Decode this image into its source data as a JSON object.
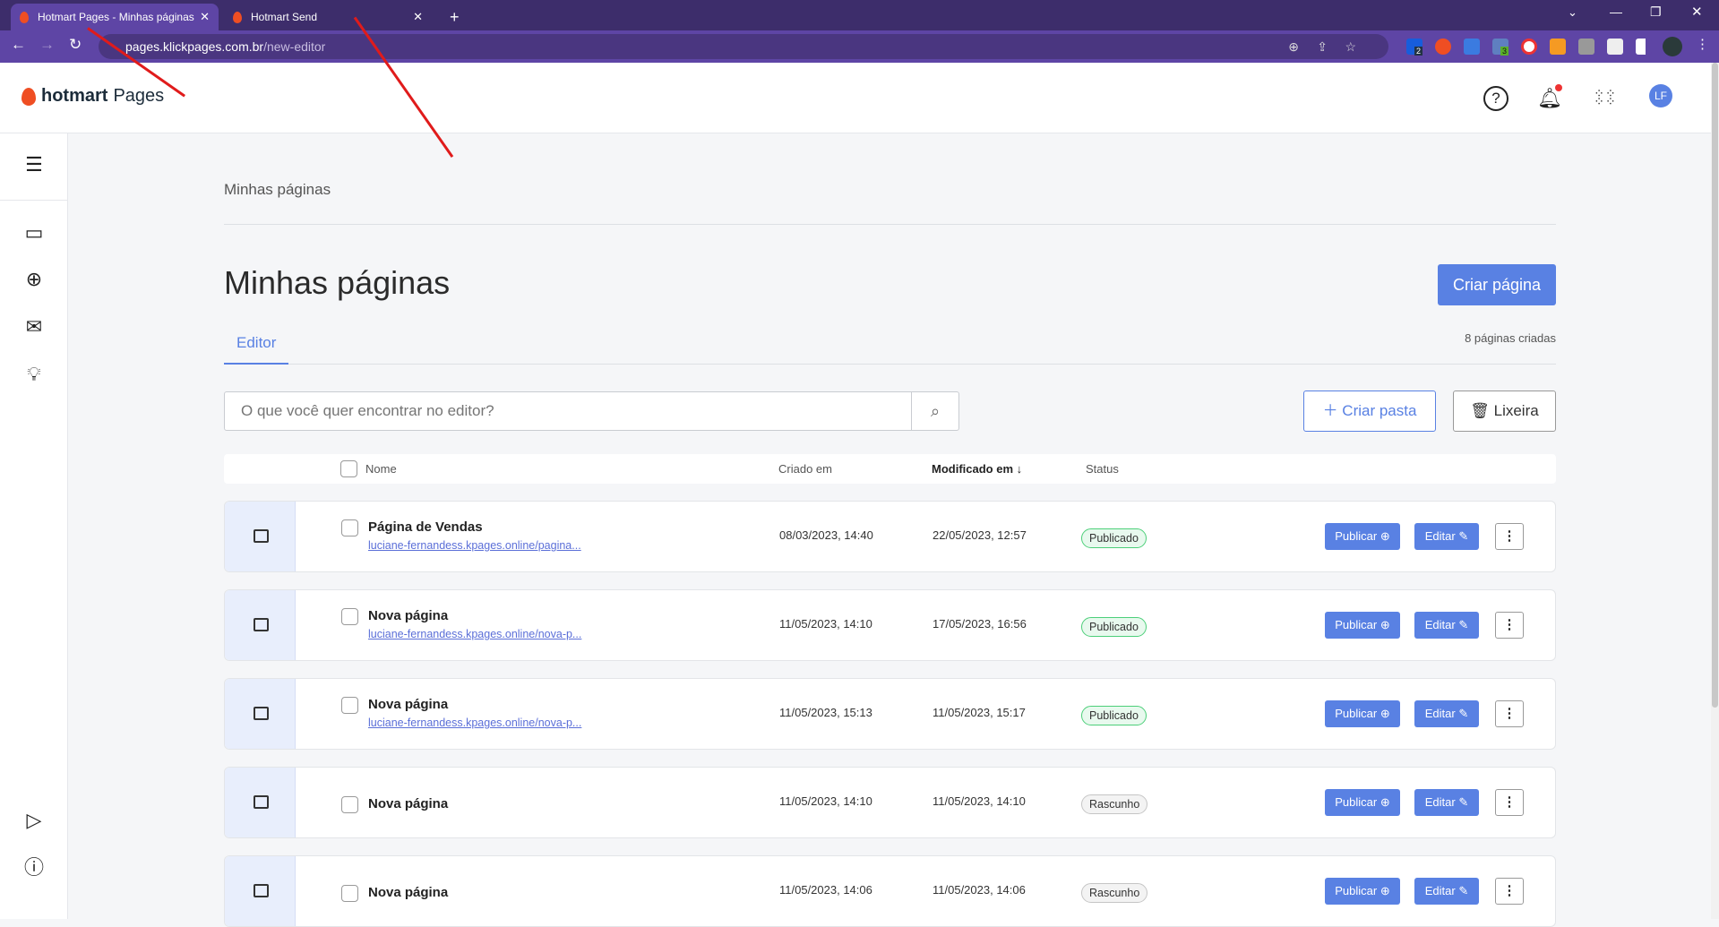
{
  "browser": {
    "tabs": [
      {
        "title": "Hotmart Pages - Minhas páginas",
        "active": true
      },
      {
        "title": "Hotmart Send",
        "active": false
      }
    ],
    "new_tab": "+",
    "url_host": "pages.klickpages.com.br",
    "url_path": "/new-editor",
    "ext_badges": [
      "2",
      "3"
    ]
  },
  "header": {
    "logo_bold": "hotmart",
    "logo_light": "Pages",
    "avatar": "LF"
  },
  "breadcrumb": "Minhas páginas",
  "page_title": "Minhas páginas",
  "create_button": "Criar página",
  "tabs": [
    {
      "label": "Editor",
      "active": true
    }
  ],
  "pages_count": "8 páginas criadas",
  "search": {
    "placeholder": "O que você quer encontrar no editor?"
  },
  "create_folder": "Criar pasta",
  "trash": "Lixeira",
  "table": {
    "headers": {
      "name": "Nome",
      "created": "Criado em",
      "modified": "Modificado em",
      "modified_sort": "↓",
      "status": "Status"
    },
    "rows": [
      {
        "name": "Página de Vendas",
        "link": "luciane-fernandess.kpages.online/pagina...",
        "created": "08/03/2023, 14:40",
        "modified": "22/05/2023, 12:57",
        "status": "Publicado"
      },
      {
        "name": "Nova página",
        "link": "luciane-fernandess.kpages.online/nova-p...",
        "created": "11/05/2023, 14:10",
        "modified": "17/05/2023, 16:56",
        "status": "Publicado"
      },
      {
        "name": "Nova página",
        "link": "luciane-fernandess.kpages.online/nova-p...",
        "created": "11/05/2023, 15:13",
        "modified": "11/05/2023, 15:17",
        "status": "Publicado"
      },
      {
        "name": "Nova página",
        "link": "",
        "created": "11/05/2023, 14:10",
        "modified": "11/05/2023, 14:10",
        "status": "Rascunho"
      },
      {
        "name": "Nova página",
        "link": "",
        "created": "11/05/2023, 14:06",
        "modified": "11/05/2023, 14:06",
        "status": "Rascunho"
      }
    ],
    "publish_label": "Publicar",
    "edit_label": "Editar"
  },
  "colors": {
    "accent": "#5981e3",
    "browser": "#5e45a5",
    "published": "#4ccf79",
    "annotation": "#e01b1b"
  }
}
